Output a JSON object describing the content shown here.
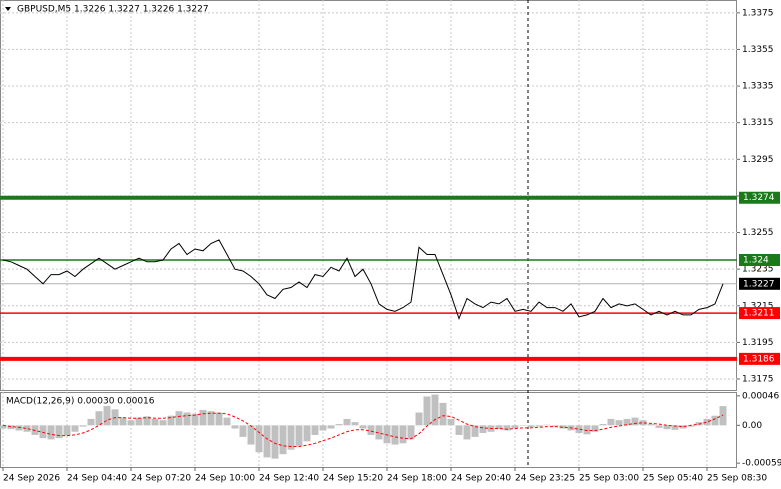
{
  "chart_data": [
    {
      "type": "line",
      "title": "GBPUSD,M5  1.3226 1.3227 1.3226 1.3227",
      "color": "#000000",
      "values": [
        1.324,
        1.3239,
        1.3237,
        1.3235,
        1.3231,
        1.3227,
        1.3232,
        1.3232,
        1.3234,
        1.3231,
        1.3235,
        1.3238,
        1.3241,
        1.3238,
        1.3235,
        1.3237,
        1.3239,
        1.3241,
        1.3239,
        1.3239,
        1.324,
        1.3246,
        1.3249,
        1.3243,
        1.3246,
        1.3245,
        1.3249,
        1.3251,
        1.3243,
        1.3235,
        1.3234,
        1.3231,
        1.3227,
        1.3221,
        1.3219,
        1.3224,
        1.3225,
        1.3228,
        1.3225,
        1.3232,
        1.3231,
        1.3236,
        1.3234,
        1.3241,
        1.3231,
        1.3235,
        1.3227,
        1.3216,
        1.3213,
        1.3212,
        1.3214,
        1.3217,
        1.3247,
        1.3243,
        1.3243,
        1.3232,
        1.3221,
        1.3208,
        1.3219,
        1.3216,
        1.3214,
        1.3217,
        1.3216,
        1.3219,
        1.3212,
        1.3213,
        1.3212,
        1.3217,
        1.3214,
        1.3214,
        1.3212,
        1.3216,
        1.3209,
        1.321,
        1.3212,
        1.3219,
        1.3214,
        1.3216,
        1.3215,
        1.3216,
        1.3213,
        1.321,
        1.3212,
        1.321,
        1.3212,
        1.321,
        1.321,
        1.3213,
        1.3214,
        1.3216,
        1.3227
      ],
      "xlim": [
        -0.375,
        91.75
      ],
      "xticks": [
        {
          "value": 0,
          "label": "24 Sep 2026"
        },
        {
          "value": 8,
          "label": "24 Sep 04:40"
        },
        {
          "value": 16,
          "label": "24 Sep 07:20"
        },
        {
          "value": 24,
          "label": "24 Sep 10:00"
        },
        {
          "value": 32,
          "label": "24 Sep 12:40"
        },
        {
          "value": 40,
          "label": "24 Sep 15:20"
        },
        {
          "value": 48,
          "label": "24 Sep 18:00"
        },
        {
          "value": 56,
          "label": "24 Sep 20:40"
        },
        {
          "value": 64,
          "label": "24 Sep 23:25"
        },
        {
          "value": 72,
          "label": "25 Sep 03:00"
        },
        {
          "value": 80,
          "label": "25 Sep 05:40"
        },
        {
          "value": 88,
          "label": "25 Sep 08:30"
        }
      ],
      "ylim": [
        1.3169,
        1.3382
      ],
      "yticks": [
        1.3375,
        1.3355,
        1.3335,
        1.3315,
        1.3295,
        1.3275,
        1.3255,
        1.3235,
        1.3215,
        1.3195,
        1.3175
      ],
      "grid": true,
      "vline": 65.625,
      "levels": [
        {
          "value": 1.3274,
          "color": "#1a7a1a",
          "weight": "bold"
        },
        {
          "value": 1.324,
          "color": "#1a7a1a",
          "weight": "normal"
        },
        {
          "value": 1.3211,
          "color": "#ff0000",
          "weight": "normal"
        },
        {
          "value": 1.3186,
          "color": "#ff0000",
          "weight": "bold"
        }
      ],
      "last_price": 1.3227
    },
    {
      "type": "macd",
      "title": "MACD(12,26,9) 0.00030 0.00016",
      "color": "#c0c0c0",
      "signal_color": "#ff0000",
      "values": [
        -5e-05,
        -6e-05,
        -8e-05,
        -0.0001,
        -0.00015,
        -0.0002,
        -0.00022,
        -0.0002,
        -0.00016,
        -0.0001,
        -2e-05,
        0.0001,
        0.00022,
        0.0003,
        0.00025,
        0.00012,
        8e-05,
        0.00012,
        0.00014,
        0.0001,
        8e-05,
        0.00015,
        0.00022,
        0.0002,
        0.00018,
        0.00024,
        0.00022,
        0.0002,
        0.00012,
        -5e-05,
        -0.00018,
        -0.0003,
        -0.00042,
        -0.0005,
        -0.00052,
        -0.00045,
        -0.00038,
        -0.00032,
        -0.00025,
        -0.00015,
        -8e-05,
        -5e-05,
        2e-05,
        0.0001,
        5e-05,
        -5e-05,
        -0.00015,
        -0.00022,
        -0.00028,
        -0.0003,
        -0.00028,
        -0.00022,
        0.0002,
        0.00045,
        0.00048,
        0.00035,
        0.0001,
        -0.00015,
        -0.00022,
        -0.00018,
        -0.00012,
        -0.0001,
        -6e-05,
        -8e-05,
        -4e-05,
        0.0,
        -3e-05,
        -2e-05,
        1e-05,
        -2e-05,
        -5e-05,
        -8e-05,
        -0.00012,
        -0.00014,
        -0.0001,
        2e-05,
        0.0001,
        8e-05,
        0.0001,
        0.00012,
        8e-05,
        2e-05,
        -4e-05,
        -6e-05,
        -7e-05,
        -5e-05,
        -2e-05,
        5e-05,
        0.0001,
        0.00015,
        0.0003
      ],
      "signal": [
        0.0,
        -2e-05,
        -3e-05,
        -5e-05,
        -8e-05,
        -0.00011,
        -0.00014,
        -0.00016,
        -0.00016,
        -0.00015,
        -0.00012,
        -7e-05,
        0.0,
        8e-05,
        0.00012,
        0.00012,
        0.00011,
        0.00011,
        0.00012,
        0.00011,
        0.00011,
        0.00012,
        0.00014,
        0.00015,
        0.00016,
        0.00018,
        0.00019,
        0.00019,
        0.00018,
        0.00013,
        7e-05,
        -1e-05,
        -0.00011,
        -0.00021,
        -0.00028,
        -0.00032,
        -0.00033,
        -0.00033,
        -0.00031,
        -0.00028,
        -0.00024,
        -0.0002,
        -0.00015,
        -0.0001,
        -7e-05,
        -7e-05,
        -9e-05,
        -0.00012,
        -0.00015,
        -0.00018,
        -0.0002,
        -0.00021,
        -0.00013,
        -1e-05,
        9e-05,
        0.00015,
        0.00014,
        8e-05,
        2e-05,
        -2e-05,
        -4e-05,
        -5e-05,
        -5e-05,
        -6e-05,
        -5e-05,
        -4e-05,
        -4e-05,
        -3e-05,
        -2e-05,
        -2e-05,
        -3e-05,
        -4e-05,
        -6e-05,
        -8e-05,
        -8e-05,
        -6e-05,
        -3e-05,
        -1e-05,
        1e-05,
        3e-05,
        4e-05,
        3e-05,
        2e-05,
        0.0,
        -1e-05,
        -2e-05,
        0.0,
        2e-05,
        5e-05,
        0.0001,
        0.00016
      ],
      "ylim": [
        -0.00065,
        0.00052
      ],
      "yticks": [
        0.00046,
        {
          "value": 0,
          "label": "0.00"
        },
        -0.00059
      ]
    }
  ]
}
